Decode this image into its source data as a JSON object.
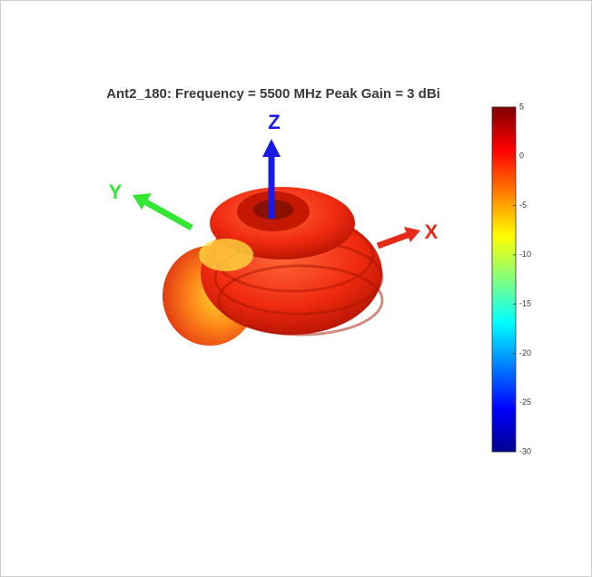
{
  "chart_data": {
    "type": "radiation-pattern",
    "title": "Ant2_180: Frequency = 5500 MHz  Peak Gain = 3 dBi",
    "axis_labels": {
      "x": "X",
      "y": "Y",
      "z": "Z"
    },
    "clim": [
      -30,
      5
    ],
    "cticks": [
      5,
      0,
      -5,
      -10,
      -15,
      -20,
      -25,
      -30
    ]
  }
}
